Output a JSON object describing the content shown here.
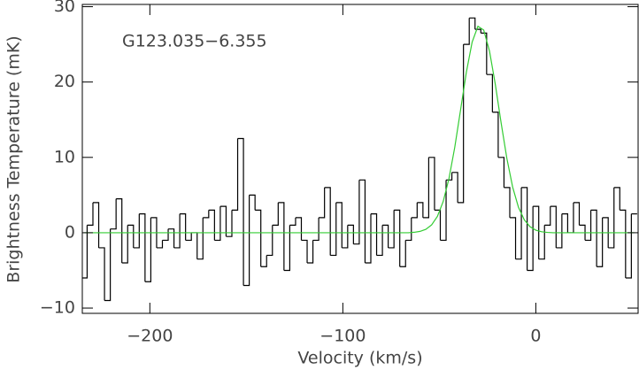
{
  "chart_data": {
    "type": "step",
    "annotation": "G123.035−6.355",
    "x_label": "Velocity (km/s)",
    "y_label": "Brightness Temperature (mK)",
    "xlim": [
      -235,
      53
    ],
    "ylim": [
      -10.7,
      30.3
    ],
    "xticks": [
      {
        "value": -200,
        "label": "−200"
      },
      {
        "value": -100,
        "label": "−100"
      },
      0
    ],
    "yticks": [
      {
        "value": -10,
        "label": "−10"
      },
      0,
      10,
      20,
      30
    ],
    "x": [
      -234,
      -231,
      -228,
      -225,
      -222,
      -219,
      -216,
      -213,
      -210,
      -207,
      -204,
      -201,
      -198,
      -195,
      -192,
      -189,
      -186,
      -183,
      -180,
      -177,
      -174,
      -171,
      -168,
      -165,
      -162,
      -159,
      -156,
      -153,
      -150,
      -147,
      -144,
      -141,
      -138,
      -135,
      -132,
      -129,
      -126,
      -123,
      -120,
      -117,
      -114,
      -111,
      -108,
      -105,
      -102,
      -99,
      -96,
      -93,
      -90,
      -87,
      -84,
      -81,
      -78,
      -75,
      -72,
      -69,
      -66,
      -63,
      -60,
      -57,
      -54,
      -51,
      -48,
      -45,
      -42,
      -39,
      -36,
      -33,
      -30,
      -27,
      -24,
      -21,
      -18,
      -15,
      -12,
      -9,
      -6,
      -3,
      0,
      3,
      6,
      9,
      12,
      15,
      18,
      21,
      24,
      27,
      30,
      33,
      36,
      39,
      42,
      45,
      48,
      51
    ],
    "series": [
      {
        "color": "#000000",
        "values": [
          -6,
          1,
          4,
          -2,
          -9,
          0.5,
          4.5,
          -4,
          1,
          -2,
          2.5,
          -6.5,
          2,
          -2,
          -1,
          0.5,
          -2,
          2.5,
          -1,
          0,
          -3.5,
          2,
          3,
          -1,
          3.5,
          -0.5,
          3,
          12.5,
          -7,
          5,
          3,
          -4.5,
          -3,
          1,
          4,
          -5,
          1,
          2,
          -1,
          -4,
          -1,
          2,
          6,
          -3,
          4,
          -2,
          1,
          -1.5,
          7,
          -4,
          2.5,
          -3,
          1,
          -2,
          3,
          -4.5,
          -1,
          2,
          4,
          2,
          10,
          3,
          -1,
          7,
          8,
          4,
          25,
          28.5,
          27,
          26.5,
          21,
          16,
          10,
          6,
          2,
          -3.5,
          6,
          -5,
          3.5,
          -3.5,
          1,
          3.5,
          -2,
          2.5,
          0,
          4,
          1,
          -1,
          3,
          -4.5,
          2,
          -2,
          6,
          3,
          -6,
          2.5
        ]
      },
      {
        "color": "#33cc33",
        "values": [
          0,
          0,
          0,
          0,
          0,
          0,
          0,
          0,
          0,
          0,
          0,
          0,
          0,
          0,
          0,
          0,
          0,
          0,
          0,
          0,
          0,
          0,
          0,
          0,
          0,
          0,
          0,
          0,
          0,
          0,
          0,
          0,
          0,
          0,
          0,
          0,
          0,
          0,
          0,
          0,
          0,
          0,
          0,
          0,
          0,
          0,
          0,
          0,
          0,
          0,
          0,
          0,
          0,
          0,
          0,
          0,
          0,
          0.06,
          0.18,
          0.45,
          1.04,
          2.17,
          4.15,
          7.2,
          11.35,
          16.3,
          21.3,
          25.3,
          27.4,
          26.9,
          24.1,
          19.7,
          14.6,
          9.85,
          6.05,
          3.38,
          1.72,
          0.8,
          0.34,
          0.13,
          0.04,
          0,
          0,
          0,
          0,
          0,
          0,
          0,
          0,
          0,
          0,
          0,
          0,
          0,
          0,
          0
        ]
      }
    ]
  }
}
